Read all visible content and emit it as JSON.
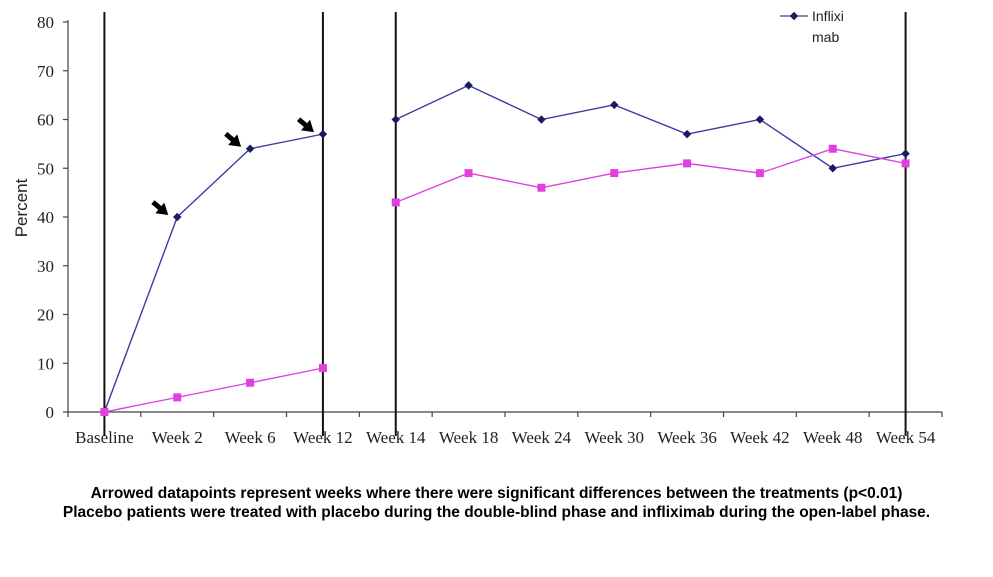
{
  "chart_data": {
    "type": "line",
    "ylabel": "Percent",
    "ylim": [
      0,
      80
    ],
    "yticks": [
      0,
      10,
      20,
      30,
      40,
      50,
      60,
      70,
      80
    ],
    "categories": [
      "Baseline",
      "Week 2",
      "Week 6",
      "Week 12",
      "Week 14",
      "Week 18",
      "Week 24",
      "Week 30",
      "Week 36",
      "Week 42",
      "Week 48",
      "Week 54"
    ],
    "series": [
      {
        "name": "Infliximab",
        "color": "#3c3c9e",
        "marker": "diamond",
        "values": [
          0,
          40,
          54,
          57,
          60,
          67,
          60,
          63,
          57,
          60,
          50,
          53
        ]
      },
      {
        "name": "",
        "color": "#e040e0",
        "marker": "square",
        "values": [
          0,
          3,
          6,
          9,
          43,
          49,
          46,
          49,
          51,
          49,
          54,
          51
        ]
      }
    ],
    "arrowed_points": [
      "Week 2",
      "Week 6",
      "Week 12"
    ],
    "phase_dividers": [
      "Baseline",
      "Week 12",
      "Week 14",
      "Week 54"
    ],
    "legend": {
      "text_line1": "Inflixi",
      "text_line2": "mab",
      "placement": "top-right"
    },
    "grid": false
  },
  "caption": {
    "line1": "Arrowed datapoints represent weeks where there were significant differences between the treatments (p<0.01)",
    "line2": "Placebo patients were treated with placebo during the double-blind phase and infliximab during the open-label phase."
  }
}
